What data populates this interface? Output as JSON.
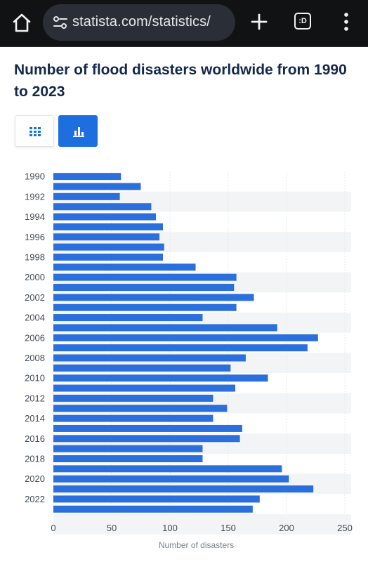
{
  "browser": {
    "url": "statista.com/statistics/",
    "tabs_label": ":D"
  },
  "page": {
    "title": "Number of flood disasters worldwide from 1990 to 2023"
  },
  "view_toggles": [
    {
      "name": "table-view-button",
      "icon": "grid-icon",
      "active": false
    },
    {
      "name": "chart-view-button",
      "icon": "bar-chart-icon",
      "active": true
    }
  ],
  "colors": {
    "bar": "#2a6fdb",
    "accent": "#1d6fe0",
    "title": "#13294b",
    "stripe": "#f3f4f6"
  },
  "chart_data": {
    "type": "bar",
    "orientation": "horizontal",
    "categories": [
      "1990",
      "1991",
      "1992",
      "1993",
      "1994",
      "1995",
      "1996",
      "1997",
      "1998",
      "1999",
      "2000",
      "2001",
      "2002",
      "2003",
      "2004",
      "2005",
      "2006",
      "2007",
      "2008",
      "2009",
      "2010",
      "2011",
      "2012",
      "2013",
      "2014",
      "2015",
      "2016",
      "2017",
      "2018",
      "2019",
      "2020",
      "2021",
      "2022",
      "2023"
    ],
    "values": [
      58,
      75,
      57,
      84,
      88,
      94,
      91,
      95,
      94,
      122,
      157,
      155,
      172,
      157,
      128,
      192,
      227,
      218,
      165,
      152,
      184,
      156,
      137,
      149,
      137,
      162,
      160,
      128,
      128,
      196,
      202,
      223,
      177,
      171
    ],
    "category_labels_shown": [
      "1990",
      "1992",
      "1994",
      "1996",
      "1998",
      "2000",
      "2002",
      "2004",
      "2006",
      "2008",
      "2010",
      "2012",
      "2014",
      "2016",
      "2018",
      "2020",
      "2022"
    ],
    "xticks": [
      0,
      50,
      100,
      150,
      200,
      250
    ],
    "xlim": [
      0,
      250
    ],
    "xlabel": "Number of disasters",
    "ylabel": "",
    "title": "",
    "grid": true
  }
}
